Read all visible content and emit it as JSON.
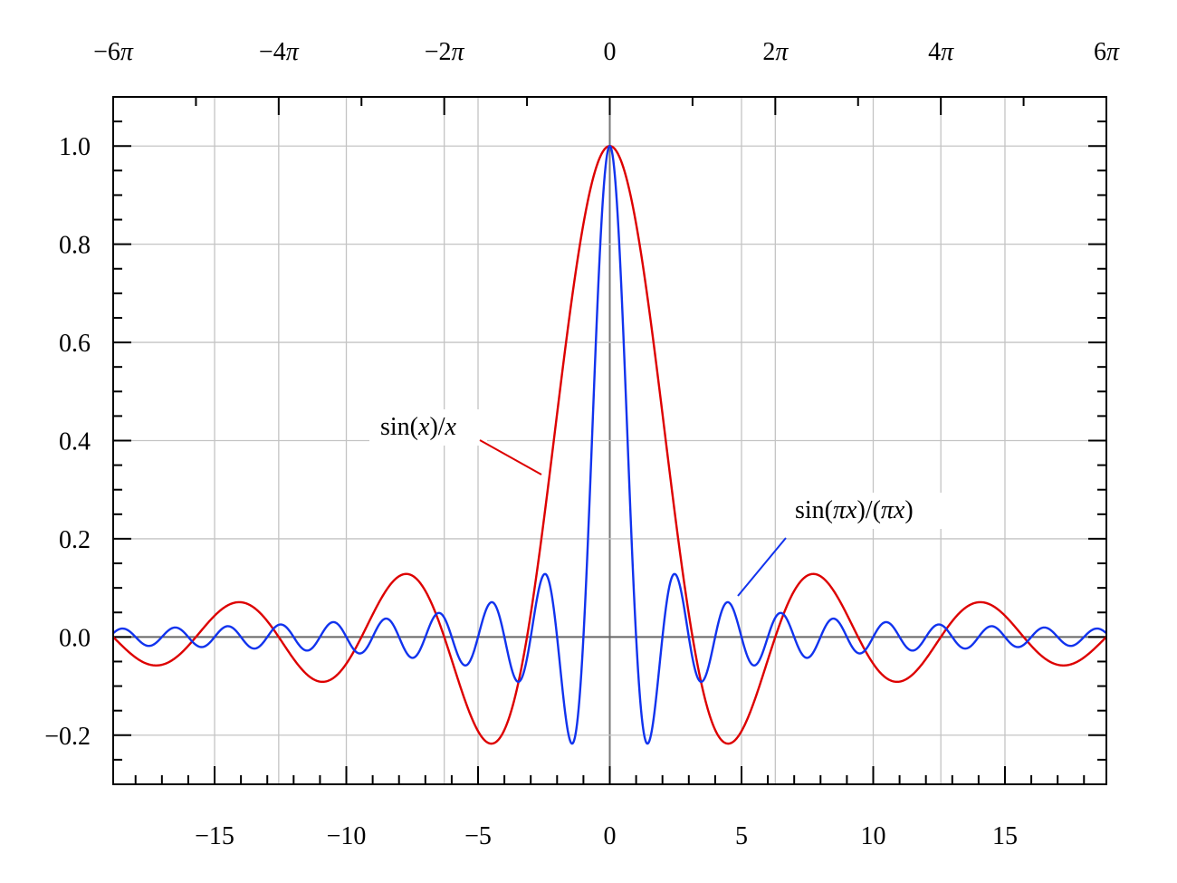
{
  "chart_data": {
    "type": "line",
    "title": "",
    "xlabel": "",
    "ylabel": "",
    "xlim": [
      -18.85,
      18.85
    ],
    "ylim": [
      -0.3,
      1.1
    ],
    "grid": true,
    "x_ticks_bottom": [
      -15,
      -10,
      -5,
      0,
      5,
      10,
      15
    ],
    "x_tick_labels_bottom": [
      "−15",
      "−10",
      "−5",
      "0",
      "5",
      "10",
      "15"
    ],
    "x_ticks_top": [
      -18.8496,
      -12.5664,
      -6.2832,
      0,
      6.2832,
      12.5664,
      18.8496
    ],
    "x_tick_labels_top": [
      "−6π",
      "−4π",
      "−2π",
      "0",
      "2π",
      "4π",
      "6π"
    ],
    "y_ticks": [
      -0.2,
      0,
      0.2,
      0.4,
      0.6,
      0.8,
      1.0
    ],
    "y_tick_labels": [
      "−0.2",
      "0.0",
      "0.2",
      "0.4",
      "0.6",
      "0.8",
      "1.0"
    ],
    "series": [
      {
        "function": "sin(x)/x",
        "color": "#dd0000",
        "x": [
          -18.85,
          -17.28,
          -15.71,
          -14.14,
          -12.57,
          -10.99,
          -9.42,
          -7.85,
          -6.28,
          -4.71,
          -3.14,
          -2.36,
          -1.57,
          -0.79,
          0,
          0.79,
          1.57,
          2.36,
          3.14,
          4.71,
          6.28,
          7.85,
          9.42,
          10.99,
          12.57,
          14.14,
          15.71,
          17.28,
          18.85
        ],
        "y": [
          0.0,
          -0.058,
          0.0,
          0.071,
          0.0,
          -0.091,
          0.0,
          0.127,
          0.0,
          -0.212,
          0.0,
          0.3,
          0.637,
          0.9,
          1.0,
          0.9,
          0.637,
          0.3,
          0.0,
          -0.212,
          0.0,
          0.127,
          0.0,
          -0.091,
          0.0,
          0.071,
          0.0,
          -0.058,
          0.0
        ]
      },
      {
        "function": "sin(πx)/(πx)",
        "color": "#1133ee",
        "x": [
          -18.5,
          -16.5,
          -14.5,
          -12.5,
          -10.5,
          -8.5,
          -6.5,
          -4.5,
          -2.5,
          -1.43,
          -1,
          -0.5,
          0,
          0.5,
          1,
          1.43,
          2.5,
          4.5,
          6.5,
          8.5,
          10.5,
          12.5,
          14.5,
          16.5,
          18.5
        ],
        "y": [
          0.017,
          0.019,
          0.022,
          0.025,
          0.03,
          0.037,
          0.049,
          0.071,
          0.127,
          -0.217,
          0.0,
          0.637,
          1.0,
          0.637,
          0.0,
          -0.217,
          0.127,
          0.071,
          0.049,
          0.037,
          0.03,
          0.025,
          0.022,
          0.019,
          0.017
        ]
      }
    ],
    "annotations": [
      {
        "text_parts": [
          "sin(",
          "x",
          ")/",
          "x"
        ],
        "italic": [
          false,
          true,
          false,
          true
        ],
        "series": 0
      },
      {
        "text_parts": [
          "sin(",
          "πx",
          ")/(",
          "πx",
          ")"
        ],
        "italic": [
          false,
          true,
          false,
          true,
          false
        ],
        "series": 1
      }
    ]
  }
}
